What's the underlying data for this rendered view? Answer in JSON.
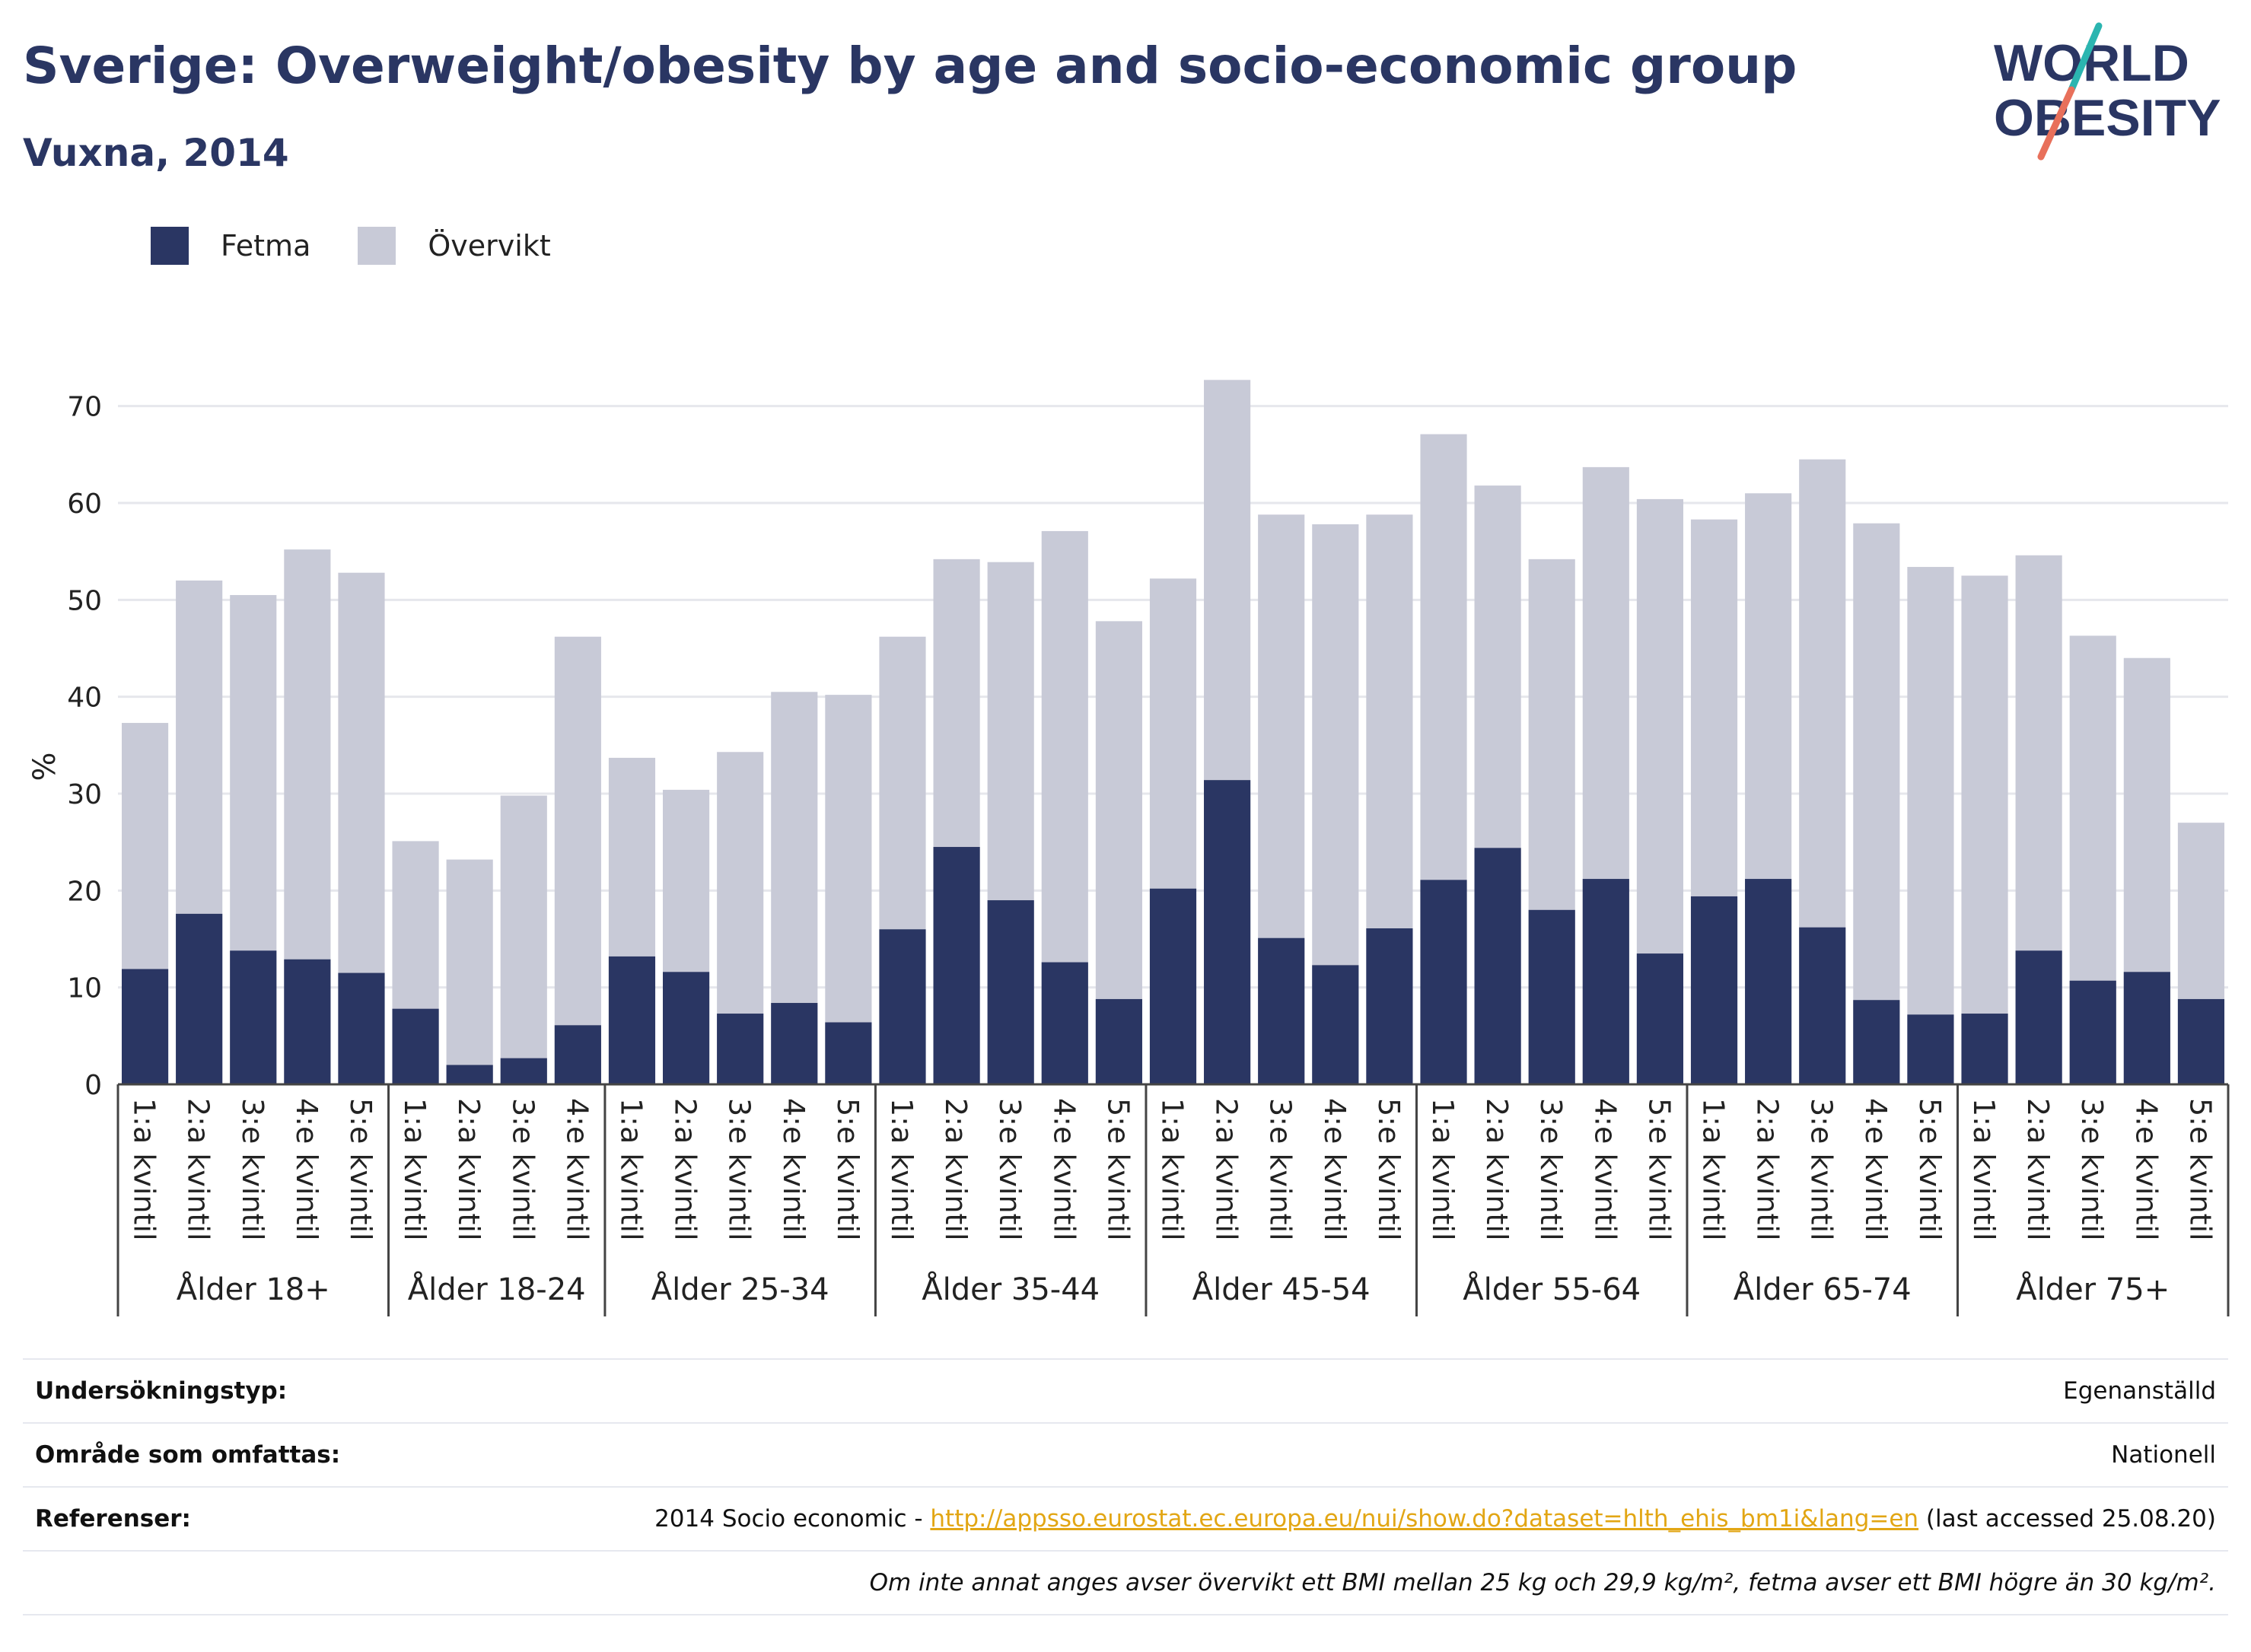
{
  "header": {
    "title": "Sverige: Overweight/obesity by age and socio-economic group",
    "subtitle": "Vuxna, 2014"
  },
  "logo": {
    "line1": "WORLD",
    "line2": "OBESITY",
    "accent_colors": [
      "#2bb5b0",
      "#e8705b"
    ]
  },
  "chart_data": {
    "type": "bar",
    "stacked": true,
    "ylabel": "%",
    "ylim": [
      0,
      75
    ],
    "yticks": [
      0,
      10,
      20,
      30,
      40,
      50,
      60,
      70
    ],
    "grid": true,
    "legend": {
      "placement": "top-left",
      "entries": [
        "Fetma",
        "Övervikt"
      ]
    },
    "colors": {
      "fetma": "#2a3663",
      "overvikt": "#c8cad7"
    },
    "groups": [
      {
        "label": "Ålder 18+",
        "categories": [
          "1:a kvintil",
          "2:a kvintil",
          "3:e kvintil",
          "4:e kvintil",
          "5:e kvintil"
        ],
        "fetma": [
          11.9,
          17.6,
          13.8,
          12.9,
          11.5
        ],
        "total": [
          37.3,
          52.0,
          50.5,
          55.2,
          52.8
        ]
      },
      {
        "label": "Ålder 18-24",
        "categories": [
          "1:a kvintil",
          "2:a kvintil",
          "3:e kvintil",
          "4:e kvintil"
        ],
        "fetma": [
          7.8,
          2.0,
          2.7,
          6.1
        ],
        "total": [
          25.1,
          23.2,
          29.8,
          46.2
        ]
      },
      {
        "label": "Ålder 25-34",
        "categories": [
          "1:a kvintil",
          "2:a kvintil",
          "3:e kvintil",
          "4:e kvintil",
          "5:e kvintil"
        ],
        "fetma": [
          13.2,
          11.6,
          7.3,
          8.4,
          6.4
        ],
        "total": [
          33.7,
          30.4,
          34.3,
          40.5,
          40.2
        ]
      },
      {
        "label": "Ålder 35-44",
        "categories": [
          "1:a kvintil",
          "2:a kvintil",
          "3:e kvintil",
          "4:e kvintil",
          "5:e kvintil"
        ],
        "fetma": [
          16.0,
          24.5,
          19.0,
          12.6,
          8.8
        ],
        "total": [
          46.2,
          54.2,
          53.9,
          57.1,
          47.8
        ]
      },
      {
        "label": "Ålder 45-54",
        "categories": [
          "1:a kvintil",
          "2:a kvintil",
          "3:e kvintil",
          "4:e kvintil",
          "5:e kvintil"
        ],
        "fetma": [
          20.2,
          31.4,
          15.1,
          12.3,
          16.1
        ],
        "total": [
          52.2,
          72.7,
          58.8,
          57.8,
          58.8
        ]
      },
      {
        "label": "Ålder 55-64",
        "categories": [
          "1:a kvintil",
          "2:a kvintil",
          "3:e kvintil",
          "4:e kvintil",
          "5:e kvintil"
        ],
        "fetma": [
          21.1,
          24.4,
          18.0,
          21.2,
          13.5
        ],
        "total": [
          67.1,
          61.8,
          54.2,
          63.7,
          60.4
        ]
      },
      {
        "label": "Ålder 65-74",
        "categories": [
          "1:a kvintil",
          "2:a kvintil",
          "3:e kvintil",
          "4:e kvintil",
          "5:e kvintil"
        ],
        "fetma": [
          19.4,
          21.2,
          16.2,
          8.7,
          7.2
        ],
        "total": [
          58.3,
          61.0,
          64.5,
          57.9,
          53.4
        ]
      },
      {
        "label": "Ålder 75+",
        "categories": [
          "1:a kvintil",
          "2:a kvintil",
          "3:e kvintil",
          "4:e kvintil",
          "5:e kvintil"
        ],
        "fetma": [
          7.3,
          13.8,
          10.7,
          11.6,
          8.8
        ],
        "total": [
          52.5,
          54.6,
          46.3,
          44.0,
          27.0
        ]
      }
    ]
  },
  "info": {
    "survey_label": "Undersökningstyp:",
    "survey_value": "Egenanställd",
    "area_label": "Område som omfattas:",
    "area_value": "Nationell",
    "refs_label": "Referenser:",
    "refs_prefix": "2014 Socio economic - ",
    "refs_link": "http://appsso.eurostat.ec.europa.eu/nui/show.do?dataset=hlth_ehis_bm1i&lang=en",
    "refs_suffix": " (last accessed 25.08.20)",
    "note": "Om inte annat anges avser övervikt ett BMI mellan 25 kg och 29,9 kg/m², fetma avser ett BMI högre än 30 kg/m²."
  }
}
